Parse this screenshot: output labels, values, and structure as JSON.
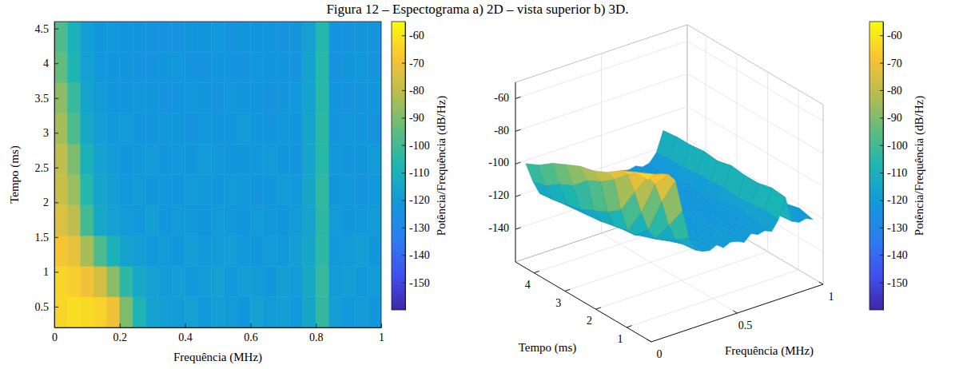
{
  "title": "Figura 12 – Espectograma a) 2D – vista superior b) 3D.",
  "chart_data": [
    {
      "type": "heatmap",
      "x_label": "Frequência (MHz)",
      "y_label": "Tempo (ms)",
      "xlim": [
        0,
        1
      ],
      "xticks": [
        0,
        0.2,
        0.4,
        0.6,
        0.8,
        1
      ],
      "ylim": [
        0.2,
        4.6
      ],
      "yticks": [
        0.5,
        1,
        1.5,
        2,
        2.5,
        3,
        3.5,
        4,
        4.5
      ],
      "x_bins": [
        0,
        0.04,
        0.08,
        0.12,
        0.16,
        0.2,
        0.24,
        0.28,
        0.32,
        0.36,
        0.4,
        0.44,
        0.48,
        0.52,
        0.56,
        0.6,
        0.64,
        0.68,
        0.72,
        0.76,
        0.8,
        0.84,
        0.88,
        0.92,
        0.96,
        1
      ],
      "y_bins": [
        0.2,
        0.64,
        1.08,
        1.52,
        1.96,
        2.4,
        2.84,
        3.28,
        3.72,
        4.16,
        4.6
      ],
      "cells": [
        [
          -64,
          -62,
          -63,
          -65,
          -70,
          -90,
          -108,
          -117,
          -119,
          -120,
          -118,
          -121,
          -119,
          -120,
          -122,
          -118,
          -120,
          -119,
          -121,
          -115,
          -103,
          -119,
          -121,
          -120,
          -122
        ],
        [
          -64,
          -66,
          -70,
          -76,
          -88,
          -104,
          -114,
          -118,
          -120,
          -119,
          -121,
          -120,
          -118,
          -121,
          -119,
          -120,
          -122,
          -119,
          -120,
          -114,
          -102,
          -120,
          -119,
          -121,
          -120
        ],
        [
          -68,
          -72,
          -84,
          -98,
          -110,
          -117,
          -119,
          -121,
          -120,
          -122,
          -119,
          -121,
          -120,
          -119,
          -121,
          -122,
          -120,
          -121,
          -119,
          -115,
          -104,
          -121,
          -120,
          -119,
          -122
        ],
        [
          -74,
          -80,
          -100,
          -114,
          -118,
          -120,
          -121,
          -119,
          -122,
          -120,
          -121,
          -122,
          -120,
          -121,
          -123,
          -120,
          -121,
          -122,
          -120,
          -116,
          -104,
          -120,
          -122,
          -121,
          -120
        ],
        [
          -78,
          -86,
          -106,
          -116,
          -119,
          -121,
          -120,
          -122,
          -121,
          -123,
          -120,
          -121,
          -122,
          -120,
          -121,
          -123,
          -122,
          -120,
          -121,
          -115,
          -103,
          -122,
          -121,
          -123,
          -121
        ],
        [
          -80,
          -90,
          -110,
          -118,
          -120,
          -122,
          -121,
          -120,
          -123,
          -121,
          -122,
          -120,
          -121,
          -123,
          -122,
          -121,
          -120,
          -122,
          -123,
          -116,
          -105,
          -121,
          -123,
          -122,
          -120
        ],
        [
          -84,
          -98,
          -114,
          -119,
          -121,
          -120,
          -122,
          -123,
          -121,
          -122,
          -124,
          -121,
          -123,
          -122,
          -120,
          -122,
          -123,
          -121,
          -122,
          -116,
          -104,
          -123,
          -121,
          -122,
          -124
        ],
        [
          -88,
          -102,
          -116,
          -120,
          -122,
          -123,
          -121,
          -122,
          -124,
          -123,
          -121,
          -122,
          -124,
          -121,
          -123,
          -122,
          -124,
          -123,
          -121,
          -117,
          -105,
          -122,
          -124,
          -123,
          -122
        ],
        [
          -94,
          -108,
          -118,
          -121,
          -123,
          -122,
          -124,
          -123,
          -122,
          -121,
          -123,
          -124,
          -122,
          -123,
          -124,
          -121,
          -123,
          -122,
          -124,
          -117,
          -105,
          -124,
          -122,
          -121,
          -123
        ],
        [
          -98,
          -110,
          -119,
          -122,
          -121,
          -123,
          -122,
          -124,
          -123,
          -124,
          -122,
          -123,
          -121,
          -124,
          -122,
          -123,
          -122,
          -124,
          -123,
          -118,
          -106,
          -123,
          -124,
          -122,
          -123
        ]
      ],
      "colorbar": {
        "label": "Potência/Frequência (dB/Hz)",
        "lim": [
          -160,
          -55
        ],
        "ticks": [
          -60,
          -70,
          -80,
          -90,
          -100,
          -110,
          -120,
          -130,
          -140,
          -150
        ]
      }
    },
    {
      "type": "surface",
      "x_label": "Frequência (MHz)",
      "y_label": "Tempo (ms)",
      "xlim": [
        0,
        1
      ],
      "xticks": [
        0,
        0.5,
        1
      ],
      "ylim": [
        0.2,
        4.6
      ],
      "yticks": [
        1,
        2,
        3,
        4
      ],
      "zlim": [
        -160,
        -50
      ],
      "zticks": [
        -60,
        -80,
        -100,
        -120,
        -140
      ],
      "x_bins": [
        0,
        0.04,
        0.08,
        0.12,
        0.16,
        0.2,
        0.24,
        0.28,
        0.32,
        0.36,
        0.4,
        0.44,
        0.48,
        0.52,
        0.56,
        0.6,
        0.64,
        0.68,
        0.72,
        0.76,
        0.8,
        0.84,
        0.88,
        0.92,
        0.96,
        1
      ],
      "y_bins": [
        0.2,
        0.64,
        1.08,
        1.52,
        1.96,
        2.4,
        2.84,
        3.28,
        3.72,
        4.16,
        4.6
      ],
      "cells": [
        [
          -64,
          -62,
          -63,
          -65,
          -70,
          -90,
          -108,
          -117,
          -119,
          -120,
          -118,
          -121,
          -119,
          -120,
          -122,
          -118,
          -120,
          -119,
          -121,
          -115,
          -103,
          -119,
          -121,
          -120,
          -122
        ],
        [
          -64,
          -66,
          -70,
          -76,
          -88,
          -104,
          -114,
          -118,
          -120,
          -119,
          -121,
          -120,
          -118,
          -121,
          -119,
          -120,
          -122,
          -119,
          -120,
          -114,
          -102,
          -120,
          -119,
          -121,
          -120
        ],
        [
          -68,
          -72,
          -84,
          -98,
          -110,
          -117,
          -119,
          -121,
          -120,
          -122,
          -119,
          -121,
          -120,
          -119,
          -121,
          -122,
          -120,
          -121,
          -119,
          -115,
          -104,
          -121,
          -120,
          -119,
          -122
        ],
        [
          -74,
          -80,
          -100,
          -114,
          -118,
          -120,
          -121,
          -119,
          -122,
          -120,
          -121,
          -122,
          -120,
          -121,
          -123,
          -120,
          -121,
          -122,
          -120,
          -116,
          -104,
          -120,
          -122,
          -121,
          -120
        ],
        [
          -78,
          -86,
          -106,
          -116,
          -119,
          -121,
          -120,
          -122,
          -121,
          -123,
          -120,
          -121,
          -122,
          -120,
          -121,
          -123,
          -122,
          -120,
          -121,
          -115,
          -103,
          -122,
          -121,
          -123,
          -121
        ],
        [
          -80,
          -90,
          -110,
          -118,
          -120,
          -122,
          -121,
          -120,
          -123,
          -121,
          -122,
          -120,
          -121,
          -123,
          -122,
          -121,
          -120,
          -122,
          -123,
          -116,
          -105,
          -121,
          -123,
          -122,
          -120
        ],
        [
          -84,
          -98,
          -114,
          -119,
          -121,
          -120,
          -122,
          -123,
          -121,
          -122,
          -124,
          -121,
          -123,
          -122,
          -120,
          -122,
          -123,
          -121,
          -122,
          -116,
          -104,
          -123,
          -121,
          -122,
          -124
        ],
        [
          -88,
          -102,
          -116,
          -120,
          -122,
          -123,
          -121,
          -122,
          -124,
          -123,
          -121,
          -122,
          -124,
          -121,
          -123,
          -122,
          -124,
          -123,
          -121,
          -117,
          -105,
          -122,
          -124,
          -123,
          -122
        ],
        [
          -94,
          -108,
          -118,
          -121,
          -123,
          -122,
          -124,
          -123,
          -122,
          -121,
          -123,
          -124,
          -122,
          -123,
          -124,
          -121,
          -123,
          -122,
          -124,
          -117,
          -105,
          -124,
          -122,
          -121,
          -123
        ],
        [
          -98,
          -110,
          -119,
          -122,
          -121,
          -123,
          -122,
          -124,
          -123,
          -124,
          -122,
          -123,
          -121,
          -124,
          -122,
          -123,
          -122,
          -124,
          -123,
          -118,
          -106,
          -123,
          -124,
          -122,
          -123
        ]
      ],
      "colorbar": {
        "label": "Potência/Frequência (dB/Hz)",
        "lim": [
          -160,
          -55
        ],
        "ticks": [
          -60,
          -70,
          -80,
          -90,
          -100,
          -110,
          -120,
          -130,
          -140,
          -150
        ]
      }
    }
  ]
}
